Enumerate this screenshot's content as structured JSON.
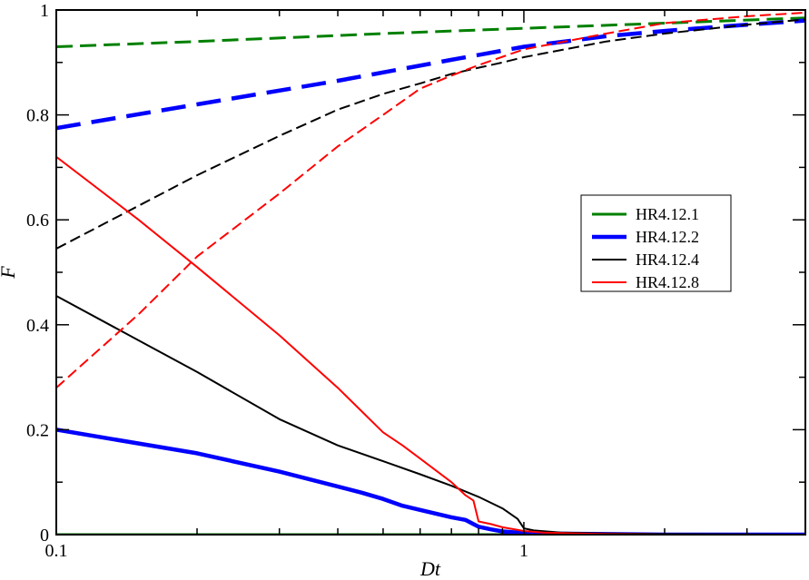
{
  "chart_data": {
    "type": "line",
    "title": "",
    "xlabel": "Dt",
    "ylabel": "F",
    "xscale": "log",
    "xlim": [
      0.1,
      4
    ],
    "ylim": [
      0,
      1
    ],
    "x_ticks": [
      0.1,
      1
    ],
    "x_tick_labels": [
      "0.1",
      "1"
    ],
    "y_ticks": [
      0,
      0.2,
      0.4,
      0.6,
      0.8,
      1
    ],
    "y_tick_labels": [
      "0",
      "0.2",
      "0.4",
      "0.6",
      "0.8",
      "1"
    ],
    "grid": false,
    "legend_position": "center-right",
    "legend": [
      {
        "name": "HR4.12.1",
        "color": "#008000",
        "width": "medium"
      },
      {
        "name": "HR4.12.2",
        "color": "#0000ff",
        "width": "thick"
      },
      {
        "name": "HR4.12.4",
        "color": "#000000",
        "width": "thin"
      },
      {
        "name": "HR4.12.8",
        "color": "#ff0000",
        "width": "thin"
      }
    ],
    "series": [
      {
        "legend_index": 0,
        "style": "dashed",
        "x": [
          0.1,
          0.2,
          0.5,
          1,
          2,
          4
        ],
        "y": [
          0.93,
          0.94,
          0.955,
          0.965,
          0.975,
          0.985
        ]
      },
      {
        "legend_index": 0,
        "style": "solid",
        "x": [
          0.1,
          0.5,
          1,
          2,
          4
        ],
        "y": [
          0.0,
          0.0,
          0.0,
          0.0,
          0.0
        ]
      },
      {
        "legend_index": 1,
        "style": "dashed",
        "x": [
          0.1,
          0.2,
          0.4,
          0.7,
          1,
          1.5,
          2,
          3,
          4
        ],
        "y": [
          0.775,
          0.82,
          0.865,
          0.905,
          0.93,
          0.95,
          0.96,
          0.972,
          0.98
        ]
      },
      {
        "legend_index": 1,
        "style": "solid",
        "x": [
          0.1,
          0.2,
          0.3,
          0.45,
          0.5,
          0.55,
          0.6,
          0.7,
          0.75,
          0.78,
          0.8,
          0.85,
          0.9,
          1,
          1.1,
          1.5,
          2,
          4
        ],
        "y": [
          0.2,
          0.155,
          0.12,
          0.08,
          0.068,
          0.055,
          0.047,
          0.033,
          0.028,
          0.02,
          0.015,
          0.01,
          0.006,
          0.003,
          0.002,
          0.001,
          0.0,
          0.0
        ]
      },
      {
        "legend_index": 2,
        "style": "dashed",
        "x": [
          0.1,
          0.2,
          0.3,
          0.4,
          0.5,
          0.6,
          0.7,
          0.8,
          0.9,
          1,
          1.5,
          2,
          3,
          4
        ],
        "y": [
          0.545,
          0.685,
          0.76,
          0.81,
          0.84,
          0.86,
          0.878,
          0.89,
          0.9,
          0.91,
          0.94,
          0.955,
          0.972,
          0.982
        ]
      },
      {
        "legend_index": 2,
        "style": "solid",
        "x": [
          0.1,
          0.2,
          0.3,
          0.4,
          0.5,
          0.6,
          0.7,
          0.8,
          0.9,
          0.97,
          1.0,
          1.05,
          1.2,
          1.5,
          2,
          4
        ],
        "y": [
          0.455,
          0.31,
          0.22,
          0.17,
          0.14,
          0.115,
          0.093,
          0.072,
          0.05,
          0.03,
          0.012,
          0.008,
          0.004,
          0.002,
          0.001,
          0.0
        ]
      },
      {
        "legend_index": 3,
        "style": "dashed",
        "x": [
          0.1,
          0.15,
          0.2,
          0.3,
          0.4,
          0.5,
          0.6,
          0.7,
          0.8,
          1,
          1.5,
          2,
          3,
          4
        ],
        "y": [
          0.28,
          0.42,
          0.53,
          0.65,
          0.74,
          0.8,
          0.85,
          0.875,
          0.895,
          0.925,
          0.955,
          0.975,
          0.988,
          0.995
        ]
      },
      {
        "legend_index": 3,
        "style": "solid",
        "x": [
          0.1,
          0.15,
          0.2,
          0.3,
          0.4,
          0.5,
          0.55,
          0.6,
          0.7,
          0.75,
          0.78,
          0.8,
          0.85,
          0.9,
          1,
          1.1,
          1.3,
          1.5,
          2,
          4
        ],
        "y": [
          0.72,
          0.6,
          0.51,
          0.38,
          0.28,
          0.195,
          0.17,
          0.145,
          0.1,
          0.075,
          0.065,
          0.025,
          0.02,
          0.014,
          0.007,
          0.004,
          0.002,
          0.001,
          0.0,
          0.0
        ]
      },
      {
        "color": "#9400d3",
        "style": "solid",
        "x": [
          1.4,
          2,
          3,
          4
        ],
        "y": [
          0.0,
          0.0,
          0.0,
          0.0
        ]
      }
    ]
  }
}
